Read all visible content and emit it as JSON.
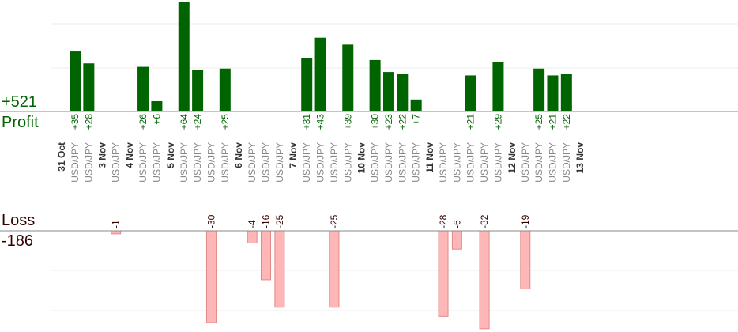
{
  "summary": {
    "profit_total": "+521",
    "profit_label": "Profit",
    "loss_label": "Loss",
    "loss_total": "-186"
  },
  "colors": {
    "profit_bar": "#006400",
    "profit_text": "#006400",
    "loss_bar": "#ffb6b6",
    "loss_bar_border": "#e08a8a",
    "loss_text": "#330000",
    "date_text": "#333333",
    "pair_text": "#888888",
    "grid": "#eeeeee",
    "axis": "#888888"
  },
  "chart_data": {
    "type": "bar",
    "title": "",
    "instrument": "USD/JPY",
    "grid": true,
    "date_groups": [
      {
        "date": "31 Oct",
        "trades": [
          35,
          28
        ]
      },
      {
        "date": "3 Nov",
        "trades": [
          -1
        ]
      },
      {
        "date": "4 Nov",
        "trades": [
          26,
          6
        ]
      },
      {
        "date": "5 Nov",
        "trades": [
          64,
          24,
          -30,
          25
        ]
      },
      {
        "date": "6 Nov",
        "trades": [
          -4,
          -16,
          -25
        ]
      },
      {
        "date": "7 Nov",
        "trades": [
          31,
          43,
          -25,
          39
        ]
      },
      {
        "date": "10 Nov",
        "trades": [
          30,
          23,
          22,
          7
        ]
      },
      {
        "date": "11 Nov",
        "trades": [
          -28,
          -6,
          21,
          -32,
          29
        ]
      },
      {
        "date": "12 Nov",
        "trades": [
          -19,
          25,
          21,
          22
        ]
      },
      {
        "date": "13 Nov",
        "trades": []
      }
    ]
  }
}
